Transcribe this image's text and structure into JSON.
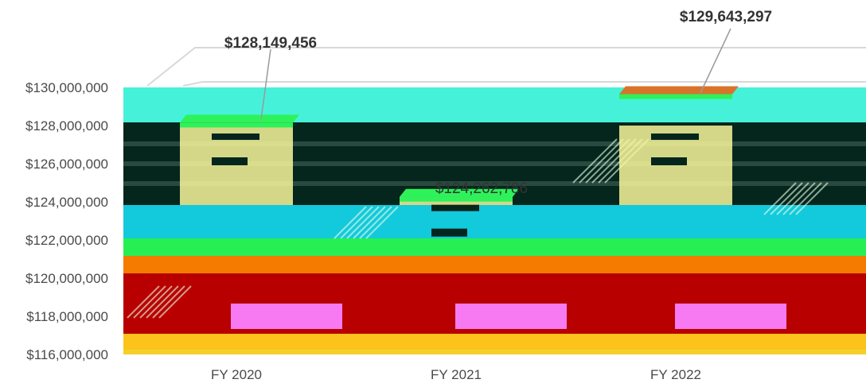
{
  "chart_data": {
    "type": "bar",
    "categories": [
      "FY 2020",
      "FY 2021",
      "FY 2022"
    ],
    "values": [
      128149456,
      124262786,
      129643297
    ],
    "data_labels": [
      "$128,149,456",
      "$124,262,786",
      "$129,643,297"
    ],
    "ylim": [
      116000000,
      130000000
    ],
    "ytick_values": [
      130000000,
      128000000,
      126000000,
      124000000,
      122000000,
      120000000,
      118000000,
      116000000
    ],
    "ytick_labels": [
      "$130,000,000",
      "$128,000,000",
      "$126,000,000",
      "$124,000,000",
      "$122,000,000",
      "$120,000,000",
      "$118,000,000",
      "$116,000,000"
    ],
    "grid": true,
    "legend": "none"
  },
  "colors": {
    "background_fill": "#45f2d9",
    "dark_band": "#04261c",
    "cyan_band": "#13c9dc",
    "green_band": "#26ef53",
    "orange_band": "#f47a00",
    "red_band": "#b80000",
    "yellow_band": "#fbc31b",
    "bar_front": "#f8f79a",
    "bar_top_left": "#2ef25a",
    "bar_top_right": "#d8742a",
    "label_text": "#333333",
    "tick_text": "#4a4a4a",
    "magenta_band": "#f77af3"
  }
}
